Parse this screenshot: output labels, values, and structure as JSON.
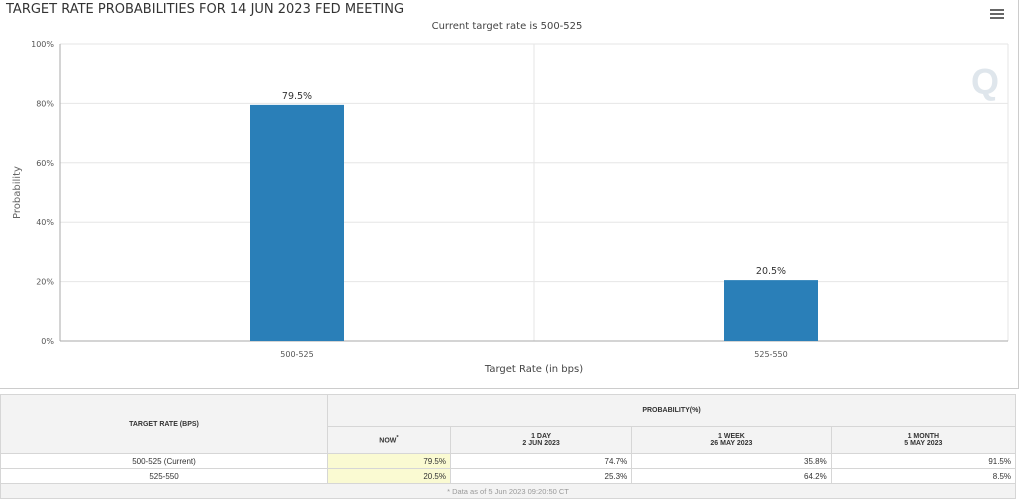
{
  "title": "TARGET RATE PROBABILITIES FOR 14 JUN 2023 FED MEETING",
  "subtitle": "Current target rate is 500-525",
  "menu_icon": "hamburger-menu-icon",
  "watermark": "Q",
  "chart_data": {
    "type": "bar",
    "categories": [
      "500-525",
      "525-550"
    ],
    "values": [
      79.5,
      20.5
    ],
    "data_labels": [
      "79.5%",
      "20.5%"
    ],
    "xlabel": "Target Rate (in bps)",
    "ylabel": "Probability",
    "ylim": [
      0,
      100
    ],
    "yticks": [
      "0%",
      "20%",
      "40%",
      "60%",
      "80%",
      "100%"
    ],
    "bar_color": "#2a7fb8",
    "grid": true
  },
  "table": {
    "header_rate": "TARGET RATE (BPS)",
    "header_prob": "PROBABILITY(%)",
    "cols": [
      {
        "l1": "NOW",
        "l2": "",
        "sup": "*"
      },
      {
        "l1": "1 DAY",
        "l2": "2 JUN 2023"
      },
      {
        "l1": "1 WEEK",
        "l2": "26 MAY 2023"
      },
      {
        "l1": "1 MONTH",
        "l2": "5 MAY 2023"
      }
    ],
    "rows": [
      {
        "rate": "500-525 (Current)",
        "v": [
          "79.5%",
          "74.7%",
          "35.8%",
          "91.5%"
        ]
      },
      {
        "rate": "525-550",
        "v": [
          "20.5%",
          "25.3%",
          "64.2%",
          "8.5%"
        ]
      }
    ],
    "footnote": "* Data as of 5 Jun 2023 09:20:50 CT"
  }
}
